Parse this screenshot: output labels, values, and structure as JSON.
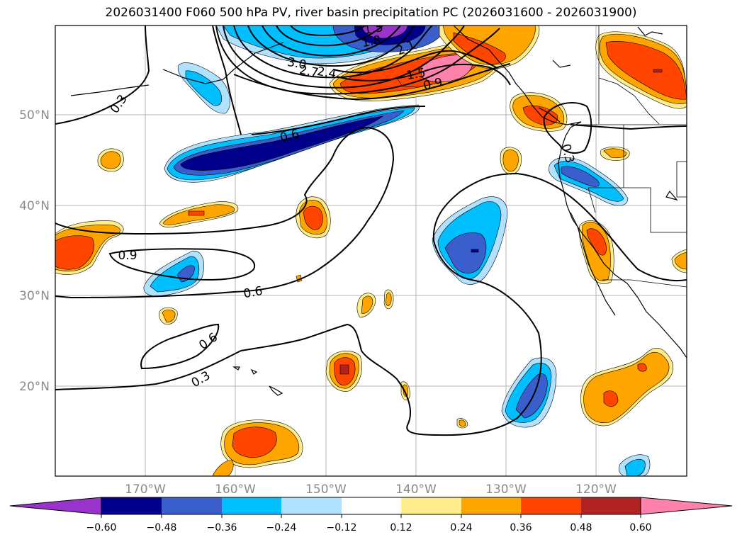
{
  "title": "2026031400 F060 500 hPa PV, river basin precipitation PC (2026031600 - 2026031900)",
  "map": {
    "lat_labels": [
      "50°N",
      "40°N",
      "30°N",
      "20°N"
    ],
    "lon_labels": [
      "170°W",
      "160°W",
      "150°W",
      "140°W",
      "130°W",
      "120°W"
    ],
    "contour_labels": [
      "0.3",
      "0.6",
      "0.9",
      "0.6",
      "0.6",
      "0.3",
      "0.9",
      "1.5",
      "2.1",
      "1.8",
      "1.5",
      "3.0",
      "2.7",
      "2.4",
      "0.3"
    ]
  },
  "colorbar": {
    "colors": {
      "under": "#9933cc",
      "c1": "#00008b",
      "c2": "#3a5fcd",
      "c3": "#00bfff",
      "c4": "#b0e2ff",
      "c5": "#ffffff",
      "c6": "#ffec8b",
      "c7": "#ffa500",
      "c8": "#ff4500",
      "c9": "#b22222",
      "over": "#ff82ab"
    },
    "ticks": [
      "−0.60",
      "−0.48",
      "−0.36",
      "−0.24",
      "−0.12",
      "0.12",
      "0.24",
      "0.36",
      "0.48",
      "0.60"
    ]
  }
}
